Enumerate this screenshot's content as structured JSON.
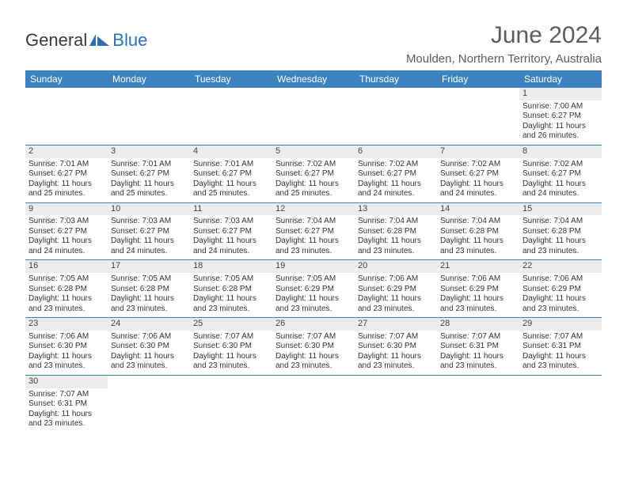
{
  "logo": {
    "text_a": "General",
    "text_b": "Blue",
    "icon_color": "#2f6fae",
    "text_color": "#3a3a3a"
  },
  "title": "June 2024",
  "location": "Moulden, Northern Territory, Australia",
  "colors": {
    "header_bg": "#3b83c0",
    "header_text": "#ffffff",
    "cell_border": "#3b83c0",
    "daynum_bg": "#ececec",
    "empty_bg": "#f2f2f2",
    "text": "#333333",
    "title_color": "#5c5c5c"
  },
  "day_headers": [
    "Sunday",
    "Monday",
    "Tuesday",
    "Wednesday",
    "Thursday",
    "Friday",
    "Saturday"
  ],
  "weeks": [
    [
      null,
      null,
      null,
      null,
      null,
      null,
      {
        "n": "1",
        "sr": "Sunrise: 7:00 AM",
        "ss": "Sunset: 6:27 PM",
        "d1": "Daylight: 11 hours",
        "d2": "and 26 minutes."
      }
    ],
    [
      {
        "n": "2",
        "sr": "Sunrise: 7:01 AM",
        "ss": "Sunset: 6:27 PM",
        "d1": "Daylight: 11 hours",
        "d2": "and 25 minutes."
      },
      {
        "n": "3",
        "sr": "Sunrise: 7:01 AM",
        "ss": "Sunset: 6:27 PM",
        "d1": "Daylight: 11 hours",
        "d2": "and 25 minutes."
      },
      {
        "n": "4",
        "sr": "Sunrise: 7:01 AM",
        "ss": "Sunset: 6:27 PM",
        "d1": "Daylight: 11 hours",
        "d2": "and 25 minutes."
      },
      {
        "n": "5",
        "sr": "Sunrise: 7:02 AM",
        "ss": "Sunset: 6:27 PM",
        "d1": "Daylight: 11 hours",
        "d2": "and 25 minutes."
      },
      {
        "n": "6",
        "sr": "Sunrise: 7:02 AM",
        "ss": "Sunset: 6:27 PM",
        "d1": "Daylight: 11 hours",
        "d2": "and 24 minutes."
      },
      {
        "n": "7",
        "sr": "Sunrise: 7:02 AM",
        "ss": "Sunset: 6:27 PM",
        "d1": "Daylight: 11 hours",
        "d2": "and 24 minutes."
      },
      {
        "n": "8",
        "sr": "Sunrise: 7:02 AM",
        "ss": "Sunset: 6:27 PM",
        "d1": "Daylight: 11 hours",
        "d2": "and 24 minutes."
      }
    ],
    [
      {
        "n": "9",
        "sr": "Sunrise: 7:03 AM",
        "ss": "Sunset: 6:27 PM",
        "d1": "Daylight: 11 hours",
        "d2": "and 24 minutes."
      },
      {
        "n": "10",
        "sr": "Sunrise: 7:03 AM",
        "ss": "Sunset: 6:27 PM",
        "d1": "Daylight: 11 hours",
        "d2": "and 24 minutes."
      },
      {
        "n": "11",
        "sr": "Sunrise: 7:03 AM",
        "ss": "Sunset: 6:27 PM",
        "d1": "Daylight: 11 hours",
        "d2": "and 24 minutes."
      },
      {
        "n": "12",
        "sr": "Sunrise: 7:04 AM",
        "ss": "Sunset: 6:27 PM",
        "d1": "Daylight: 11 hours",
        "d2": "and 23 minutes."
      },
      {
        "n": "13",
        "sr": "Sunrise: 7:04 AM",
        "ss": "Sunset: 6:28 PM",
        "d1": "Daylight: 11 hours",
        "d2": "and 23 minutes."
      },
      {
        "n": "14",
        "sr": "Sunrise: 7:04 AM",
        "ss": "Sunset: 6:28 PM",
        "d1": "Daylight: 11 hours",
        "d2": "and 23 minutes."
      },
      {
        "n": "15",
        "sr": "Sunrise: 7:04 AM",
        "ss": "Sunset: 6:28 PM",
        "d1": "Daylight: 11 hours",
        "d2": "and 23 minutes."
      }
    ],
    [
      {
        "n": "16",
        "sr": "Sunrise: 7:05 AM",
        "ss": "Sunset: 6:28 PM",
        "d1": "Daylight: 11 hours",
        "d2": "and 23 minutes."
      },
      {
        "n": "17",
        "sr": "Sunrise: 7:05 AM",
        "ss": "Sunset: 6:28 PM",
        "d1": "Daylight: 11 hours",
        "d2": "and 23 minutes."
      },
      {
        "n": "18",
        "sr": "Sunrise: 7:05 AM",
        "ss": "Sunset: 6:28 PM",
        "d1": "Daylight: 11 hours",
        "d2": "and 23 minutes."
      },
      {
        "n": "19",
        "sr": "Sunrise: 7:05 AM",
        "ss": "Sunset: 6:29 PM",
        "d1": "Daylight: 11 hours",
        "d2": "and 23 minutes."
      },
      {
        "n": "20",
        "sr": "Sunrise: 7:06 AM",
        "ss": "Sunset: 6:29 PM",
        "d1": "Daylight: 11 hours",
        "d2": "and 23 minutes."
      },
      {
        "n": "21",
        "sr": "Sunrise: 7:06 AM",
        "ss": "Sunset: 6:29 PM",
        "d1": "Daylight: 11 hours",
        "d2": "and 23 minutes."
      },
      {
        "n": "22",
        "sr": "Sunrise: 7:06 AM",
        "ss": "Sunset: 6:29 PM",
        "d1": "Daylight: 11 hours",
        "d2": "and 23 minutes."
      }
    ],
    [
      {
        "n": "23",
        "sr": "Sunrise: 7:06 AM",
        "ss": "Sunset: 6:30 PM",
        "d1": "Daylight: 11 hours",
        "d2": "and 23 minutes."
      },
      {
        "n": "24",
        "sr": "Sunrise: 7:06 AM",
        "ss": "Sunset: 6:30 PM",
        "d1": "Daylight: 11 hours",
        "d2": "and 23 minutes."
      },
      {
        "n": "25",
        "sr": "Sunrise: 7:07 AM",
        "ss": "Sunset: 6:30 PM",
        "d1": "Daylight: 11 hours",
        "d2": "and 23 minutes."
      },
      {
        "n": "26",
        "sr": "Sunrise: 7:07 AM",
        "ss": "Sunset: 6:30 PM",
        "d1": "Daylight: 11 hours",
        "d2": "and 23 minutes."
      },
      {
        "n": "27",
        "sr": "Sunrise: 7:07 AM",
        "ss": "Sunset: 6:30 PM",
        "d1": "Daylight: 11 hours",
        "d2": "and 23 minutes."
      },
      {
        "n": "28",
        "sr": "Sunrise: 7:07 AM",
        "ss": "Sunset: 6:31 PM",
        "d1": "Daylight: 11 hours",
        "d2": "and 23 minutes."
      },
      {
        "n": "29",
        "sr": "Sunrise: 7:07 AM",
        "ss": "Sunset: 6:31 PM",
        "d1": "Daylight: 11 hours",
        "d2": "and 23 minutes."
      }
    ],
    [
      {
        "n": "30",
        "sr": "Sunrise: 7:07 AM",
        "ss": "Sunset: 6:31 PM",
        "d1": "Daylight: 11 hours",
        "d2": "and 23 minutes."
      },
      null,
      null,
      null,
      null,
      null,
      null
    ]
  ]
}
